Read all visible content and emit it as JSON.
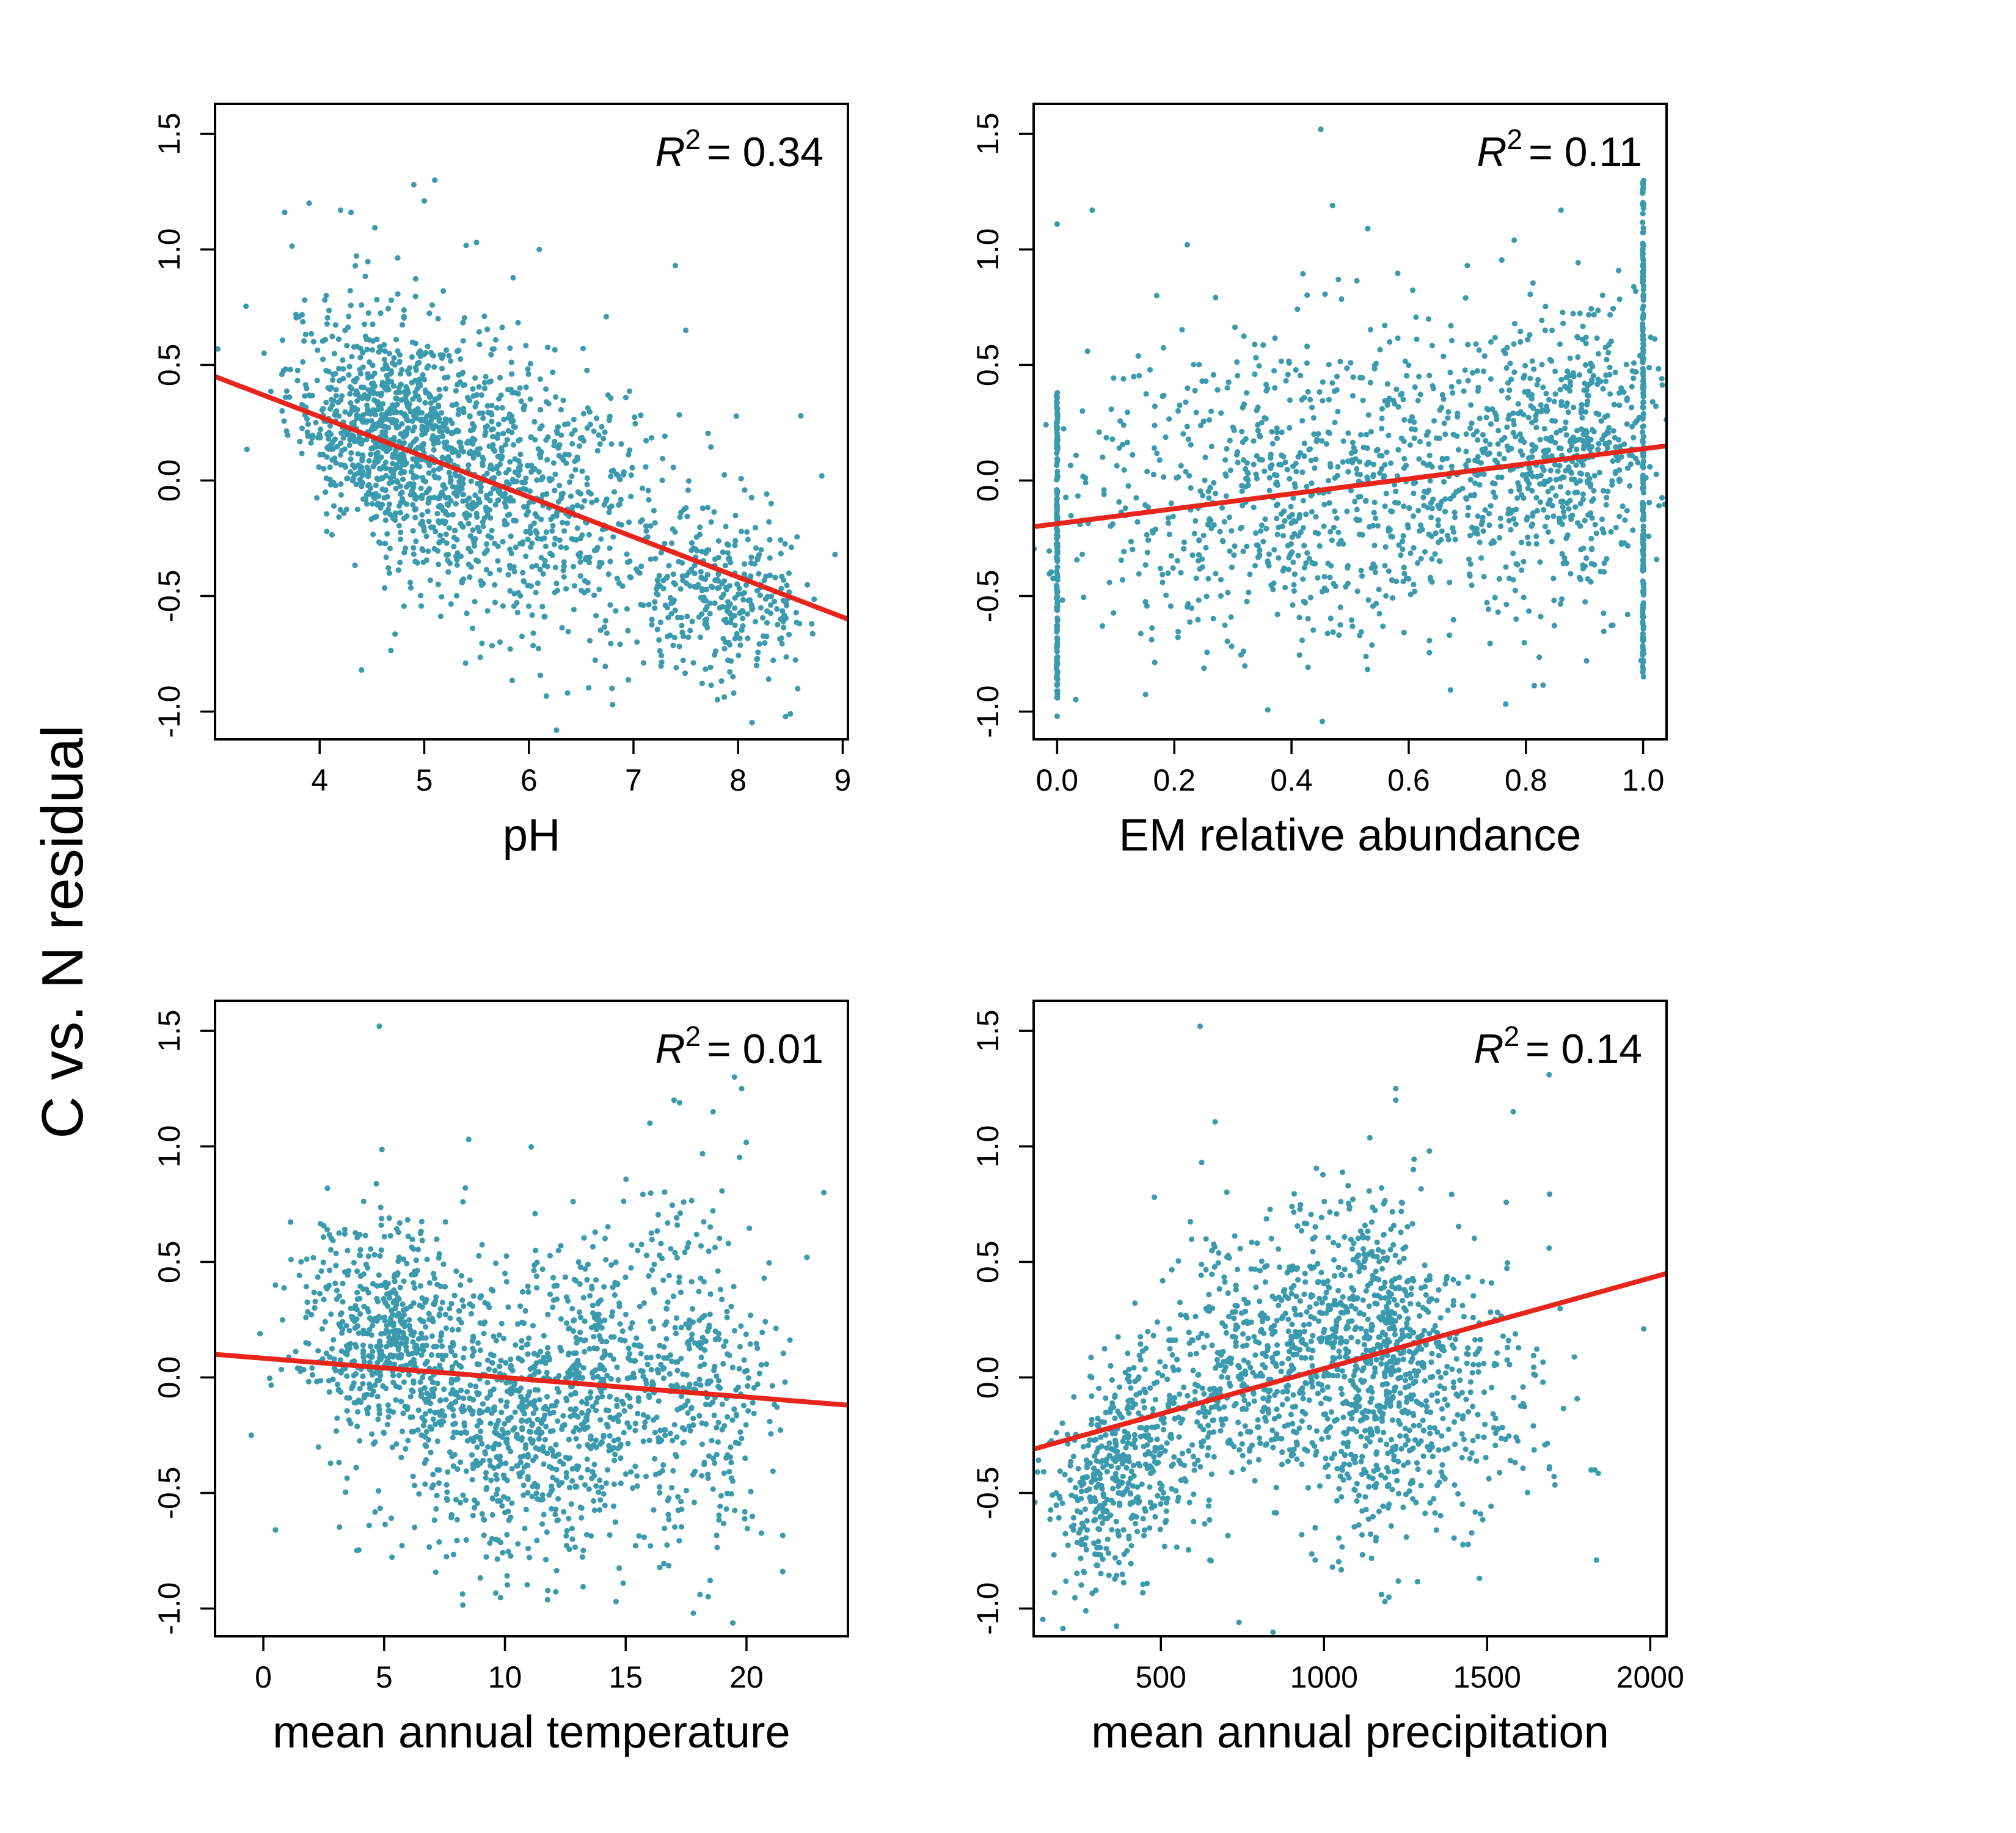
{
  "figure": {
    "ylabel": "C vs. N residual"
  },
  "chart_data": [
    {
      "type": "scatter",
      "xlabel": "pH",
      "ylabel": "C vs. N residual",
      "r2_label": "R",
      "r2_sup": "2",
      "r2_value": "= 0.34",
      "xlim": [
        3.0,
        9.05
      ],
      "ylim": [
        -1.12,
        1.63
      ],
      "xticks": [
        4,
        5,
        6,
        7,
        8,
        9
      ],
      "yticks": [
        -1.0,
        -0.5,
        0.0,
        0.5,
        1.0,
        1.5
      ],
      "fit": {
        "x0": 3.0,
        "y0": 0.45,
        "x1": 9.05,
        "y1": -0.6
      },
      "cloud": [
        {
          "cx": 4.6,
          "cy": 0.22,
          "sx": 0.45,
          "sy": 0.25,
          "n": 700,
          "r": -0.3
        },
        {
          "cx": 5.4,
          "cy": 0.05,
          "sx": 0.55,
          "sy": 0.32,
          "n": 600,
          "r": -0.3
        },
        {
          "cx": 6.5,
          "cy": -0.15,
          "sx": 0.6,
          "sy": 0.3,
          "n": 350,
          "r": -0.2
        },
        {
          "cx": 7.9,
          "cy": -0.5,
          "sx": 0.4,
          "sy": 0.18,
          "n": 300,
          "r": 0
        }
      ],
      "outliers": [
        [
          3.9,
          1.2
        ],
        [
          4.2,
          1.17
        ],
        [
          4.3,
          1.16
        ],
        [
          4.9,
          1.28
        ],
        [
          5.1,
          1.3
        ],
        [
          5.0,
          1.21
        ],
        [
          5.5,
          1.03
        ],
        [
          6.1,
          1.0
        ],
        [
          7.4,
          0.93
        ],
        [
          7.5,
          0.65
        ],
        [
          8.6,
          0.28
        ],
        [
          8.8,
          0.02
        ],
        [
          6.8,
          -0.97
        ],
        [
          8.5,
          -1.01
        ],
        [
          4.4,
          -0.82
        ]
      ]
    },
    {
      "type": "scatter",
      "xlabel": "EM relative abundance",
      "ylabel": "C vs. N residual",
      "r2_label": "R",
      "r2_sup": "2",
      "r2_value": "= 0.11",
      "xlim": [
        -0.04,
        1.04
      ],
      "ylim": [
        -1.12,
        1.63
      ],
      "xticks": [
        0.0,
        0.2,
        0.4,
        0.6,
        0.8,
        1.0
      ],
      "yticks": [
        -1.0,
        -0.5,
        0.0,
        0.5,
        1.0,
        1.5
      ],
      "fit": {
        "x0": -0.04,
        "y0": -0.2,
        "x1": 1.04,
        "y1": 0.15
      },
      "cloud": [
        {
          "cx": 0.3,
          "cy": -0.08,
          "sx": 0.17,
          "sy": 0.35,
          "n": 500,
          "r": 0
        },
        {
          "cx": 0.65,
          "cy": 0.0,
          "sx": 0.17,
          "sy": 0.33,
          "n": 550,
          "r": 0
        },
        {
          "cx": 0.88,
          "cy": 0.15,
          "sx": 0.08,
          "sy": 0.3,
          "n": 450,
          "r": 0
        }
      ],
      "columns": [
        {
          "x": 0.0,
          "ymin": -0.95,
          "ymax": 0.38,
          "n": 170
        },
        {
          "x": 1.0,
          "ymin": -0.85,
          "ymax": 1.3,
          "n": 220
        }
      ],
      "outliers": [
        [
          0.45,
          1.52
        ],
        [
          0.47,
          1.19
        ],
        [
          0.53,
          1.09
        ],
        [
          0.86,
          1.17
        ],
        [
          0.06,
          1.17
        ],
        [
          0.7,
          0.93
        ],
        [
          0.78,
          1.04
        ],
        [
          0.48,
          0.87
        ],
        [
          0.0,
          1.11
        ],
        [
          0.0,
          -1.02
        ],
        [
          0.17,
          0.8
        ]
      ]
    },
    {
      "type": "scatter",
      "xlabel": "mean annual temperature",
      "ylabel": "C vs. N residual",
      "r2_label": "R",
      "r2_sup": "2",
      "r2_value": "= 0.01",
      "xlim": [
        -2.0,
        24.2
      ],
      "ylim": [
        -1.12,
        1.63
      ],
      "xticks": [
        0,
        5,
        10,
        15,
        20
      ],
      "yticks": [
        -1.0,
        -0.5,
        0.0,
        0.5,
        1.0,
        1.5
      ],
      "fit": {
        "x0": -2.0,
        "y0": 0.1,
        "x1": 24.2,
        "y1": -0.12
      },
      "cloud": [
        {
          "cx": 5.0,
          "cy": 0.18,
          "sx": 1.8,
          "sy": 0.25,
          "n": 550,
          "r": 0
        },
        {
          "cx": 9.5,
          "cy": -0.22,
          "sx": 2.4,
          "sy": 0.3,
          "n": 550,
          "r": 0
        },
        {
          "cx": 13.5,
          "cy": -0.05,
          "sx": 1.8,
          "sy": 0.33,
          "n": 400,
          "r": 0
        },
        {
          "cx": 18.0,
          "cy": 0.0,
          "sx": 1.6,
          "sy": 0.42,
          "n": 350,
          "r": 0
        }
      ],
      "outliers": [
        [
          4.8,
          1.52
        ],
        [
          19.8,
          1.25
        ],
        [
          19.5,
          1.3
        ],
        [
          17.0,
          1.2
        ],
        [
          16.0,
          1.1
        ],
        [
          23.2,
          0.8
        ],
        [
          22.5,
          0.52
        ],
        [
          0.5,
          0.4
        ],
        [
          -0.5,
          -0.25
        ],
        [
          0.5,
          -0.66
        ],
        [
          21.5,
          -0.84
        ],
        [
          14.6,
          -0.97
        ],
        [
          17.8,
          -1.02
        ],
        [
          8.5,
          1.03
        ]
      ]
    },
    {
      "type": "scatter",
      "xlabel": "mean annual precipitation",
      "ylabel": "C vs. N residual",
      "r2_label": "R",
      "r2_sup": "2",
      "r2_value": "= 0.14",
      "xlim": [
        110,
        2050
      ],
      "ylim": [
        -1.12,
        1.63
      ],
      "xticks": [
        500,
        1000,
        1500,
        2000
      ],
      "yticks": [
        -1.0,
        -0.5,
        0.0,
        0.5,
        1.0,
        1.5
      ],
      "fit": {
        "x0": 110,
        "y0": -0.31,
        "x1": 2050,
        "y1": 0.45
      },
      "cloud": [
        {
          "cx": 380,
          "cy": -0.42,
          "sx": 110,
          "sy": 0.25,
          "n": 450,
          "r": 0.3
        },
        {
          "cx": 780,
          "cy": 0.05,
          "sx": 170,
          "sy": 0.3,
          "n": 550,
          "r": 0.2
        },
        {
          "cx": 1160,
          "cy": 0.05,
          "sx": 120,
          "sy": 0.38,
          "n": 600,
          "r": 0
        },
        {
          "cx": 1400,
          "cy": -0.05,
          "sx": 150,
          "sy": 0.32,
          "n": 250,
          "r": 0
        }
      ],
      "outliers": [
        [
          620,
          1.52
        ],
        [
          1690,
          1.31
        ],
        [
          1220,
          1.2
        ],
        [
          1580,
          1.15
        ],
        [
          1980,
          0.21
        ],
        [
          1830,
          -0.4
        ],
        [
          1690,
          0.56
        ],
        [
          270,
          -1.01
        ],
        [
          1220,
          1.25
        ],
        [
          480,
          0.78
        ]
      ]
    }
  ]
}
